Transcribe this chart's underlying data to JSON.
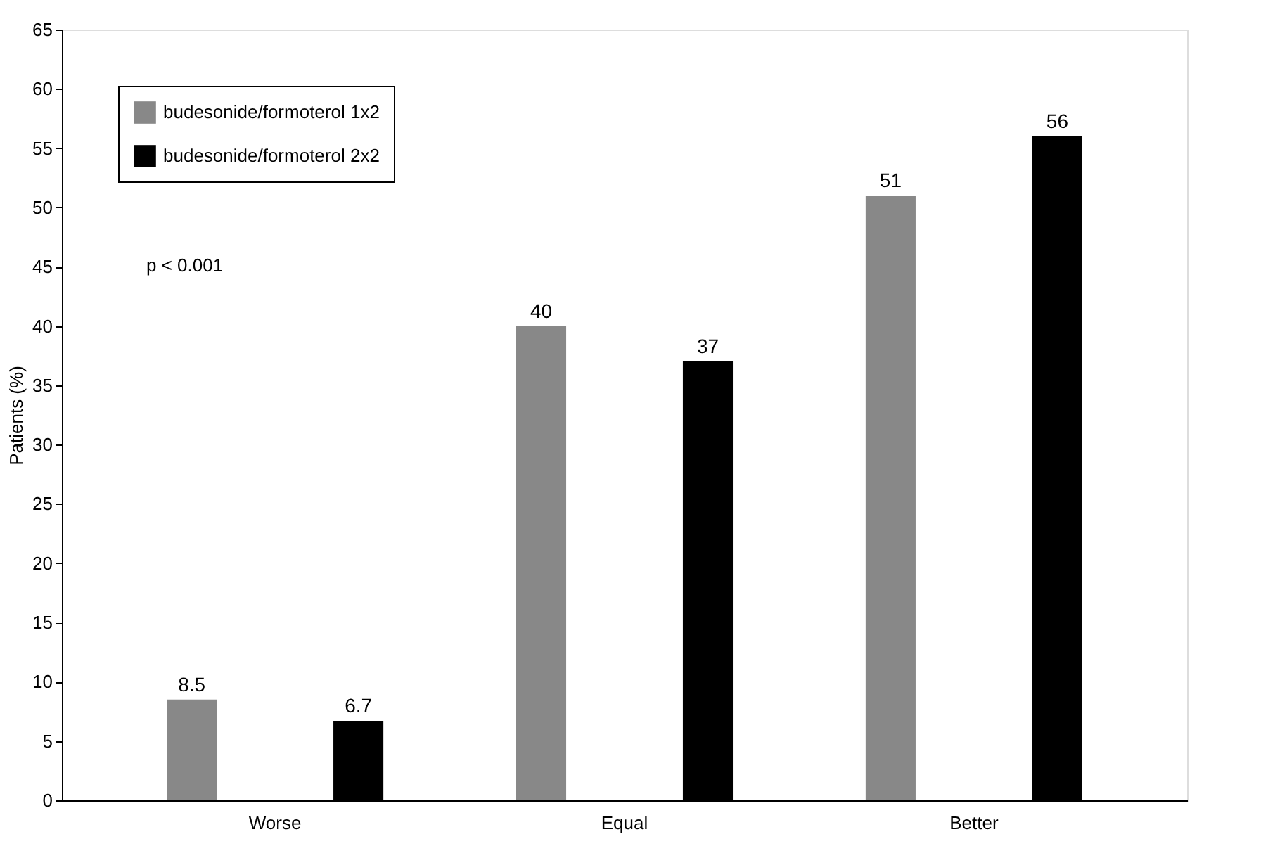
{
  "chart_data": {
    "type": "bar",
    "ylabel": "Patients (%)",
    "categories": [
      "Worse",
      "Equal",
      "Better"
    ],
    "series": [
      {
        "name": "budesonide/formoterol 1x2",
        "color": "#888888",
        "values": [
          8.5,
          40,
          51
        ]
      },
      {
        "name": "budesonide/formoterol 2x2",
        "color": "#000000",
        "values": [
          6.7,
          37,
          56
        ]
      }
    ],
    "ylim": [
      0,
      65
    ],
    "yticks": [
      0,
      5,
      10,
      15,
      20,
      25,
      30,
      35,
      40,
      45,
      50,
      55,
      60,
      65
    ],
    "data_labels": true,
    "grid": false,
    "legend": "top left",
    "annotations": [
      "p < 0.001"
    ]
  }
}
